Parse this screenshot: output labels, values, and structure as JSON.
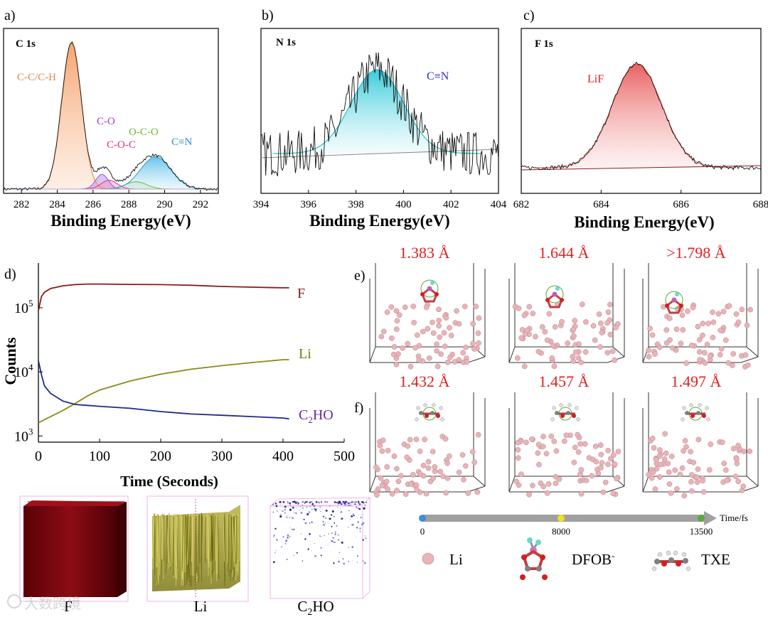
{
  "panels": {
    "a": {
      "letter": "a)",
      "title": "C 1s",
      "xlabel": "Binding Energy(eV)",
      "ticks": [
        "282",
        "284",
        "286",
        "288",
        "290",
        "292"
      ],
      "labels": {
        "cc": "C-C/C-H",
        "co": "C-O",
        "coc": "C-O-C",
        "oco": "O-C-O",
        "cn": "C≡N"
      }
    },
    "b": {
      "letter": "b)",
      "title": "N 1s",
      "xlabel": "Binding Energy(eV)",
      "ticks": [
        "394",
        "396",
        "398",
        "400",
        "402",
        "404"
      ],
      "labels": {
        "cn": "C≡N"
      }
    },
    "c": {
      "letter": "c)",
      "title": "F 1s",
      "xlabel": "Binding Energy(eV)",
      "ticks": [
        "682",
        "684",
        "686",
        "688"
      ],
      "labels": {
        "lif": "LiF"
      }
    },
    "d": {
      "letter": "d)",
      "xlabel": "Time (Seconds)",
      "ylabel": "Counts",
      "xticks": [
        "0",
        "100",
        "200",
        "300",
        "400",
        "500"
      ],
      "yticks": [
        "10",
        "10",
        "10"
      ],
      "yexp": [
        "5",
        "4",
        "3"
      ],
      "series_labels": {
        "F": "F",
        "Li": "Li",
        "C2HO": "C2HO"
      }
    },
    "e": {
      "letter": "e)",
      "distances": [
        "1.383 Å",
        "1.644 Å",
        ">1.798 Å"
      ]
    },
    "f": {
      "letter": "f)",
      "distances": [
        "1.432 Å",
        "1.457 Å",
        "1.497 Å"
      ]
    }
  },
  "timeline": {
    "unit": "Time/fs",
    "ticks": [
      "0",
      "8000",
      "13500"
    ]
  },
  "legend": {
    "li": "Li",
    "dfob": "DFOB",
    "dfob_sup": "-",
    "txe": "TXE"
  },
  "cubes": {
    "f": "F",
    "li": "Li",
    "c2ho": "C2HO"
  },
  "watermark": "大数跨境",
  "colors": {
    "red": "#e02020",
    "f_line": "#8b1a1a",
    "li_line": "#8a8a1a",
    "c2ho_line": "#1e2a8c",
    "li_atom": "#e8b4b8"
  },
  "chart_data": [
    {
      "type": "line",
      "title": "C 1s",
      "xlabel": "Binding Energy(eV)",
      "xlim": [
        281,
        293
      ],
      "peaks": [
        {
          "name": "C-C/C-H",
          "center": 284.8,
          "height": 1.0
        },
        {
          "name": "C-O",
          "center": 286.5,
          "height": 0.1
        },
        {
          "name": "C-O-C",
          "center": 286.9,
          "height": 0.06
        },
        {
          "name": "O-C-O",
          "center": 288.4,
          "height": 0.05
        },
        {
          "name": "C≡N",
          "center": 289.5,
          "height": 0.22
        }
      ]
    },
    {
      "type": "line",
      "title": "N 1s",
      "xlabel": "Binding Energy(eV)",
      "xlim": [
        394,
        404
      ],
      "peaks": [
        {
          "name": "C≡N",
          "center": 398.9,
          "height": 1.0
        }
      ]
    },
    {
      "type": "line",
      "title": "F 1s",
      "xlabel": "Binding Energy(eV)",
      "xlim": [
        682,
        688
      ],
      "peaks": [
        {
          "name": "LiF",
          "center": 684.9,
          "height": 1.0
        }
      ]
    },
    {
      "type": "line",
      "xlabel": "Time (Seconds)",
      "ylabel": "Counts",
      "xlim": [
        0,
        500
      ],
      "ylim": [
        800,
        500000
      ],
      "yscale": "log",
      "x": [
        0,
        5,
        10,
        20,
        40,
        60,
        80,
        100,
        150,
        200,
        250,
        300,
        350,
        400,
        410
      ],
      "series": [
        {
          "name": "F",
          "values": [
            90000,
            150000,
            175000,
            200000,
            220000,
            230000,
            235000,
            235000,
            232000,
            230000,
            225000,
            215000,
            210000,
            205000,
            205000
          ]
        },
        {
          "name": "Li",
          "values": [
            1600,
            1700,
            1800,
            2000,
            2500,
            3200,
            4200,
            5200,
            7200,
            9200,
            11000,
            12500,
            14000,
            15500,
            15500
          ]
        },
        {
          "name": "C2HO",
          "values": [
            15000,
            9000,
            6000,
            4600,
            3500,
            3100,
            3000,
            2900,
            2700,
            2400,
            2200,
            2100,
            2000,
            1900,
            1850
          ]
        }
      ]
    }
  ]
}
